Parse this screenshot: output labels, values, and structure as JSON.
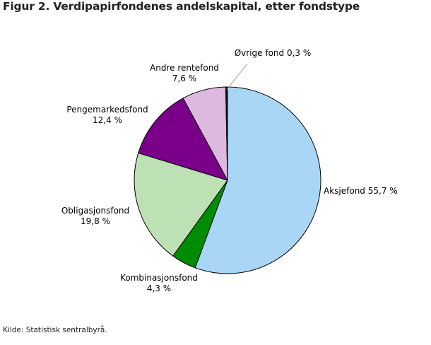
{
  "title": "Figur 2. Verdipapirfondenes andelskapital, etter fondstype",
  "source": "Kilde: Statistisk sentralbyrå.",
  "chart_data": {
    "type": "pie",
    "title": "Figur 2. Verdipapirfondenes andelskapital, etter fondstype",
    "slices": [
      {
        "label": "Aksjefond",
        "value_text": "55,7 %",
        "value": 55.7,
        "color": "#aad6f5"
      },
      {
        "label": "Kombinasjonsfond",
        "value_text": "4,3 %",
        "value": 4.3,
        "color": "#008c00"
      },
      {
        "label": "Obligasjonsfond",
        "value_text": "19,8 %",
        "value": 19.8,
        "color": "#bde0b5"
      },
      {
        "label": "Pengemarkedsfond",
        "value_text": "12,4 %",
        "value": 12.4,
        "color": "#7a0089"
      },
      {
        "label": "Andre rentefond",
        "value_text": "7,6 %",
        "value": 7.6,
        "color": "#ddb9e0"
      },
      {
        "label": "Øvrige fond",
        "value_text": "0,3 %",
        "value": 0.3,
        "color": "#111111"
      }
    ]
  }
}
